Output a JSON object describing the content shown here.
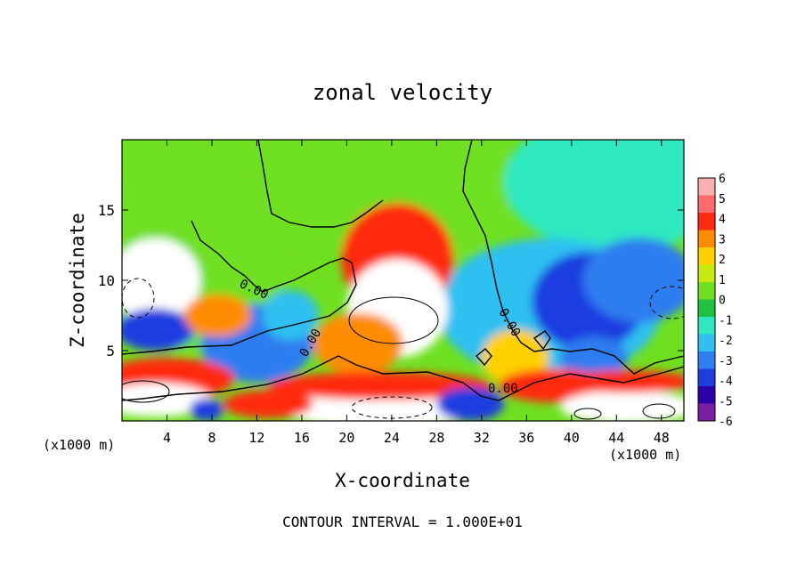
{
  "chart_data": {
    "type": "heatmap",
    "title": "zonal velocity",
    "xlabel": "X-coordinate",
    "ylabel": "Z-coordinate",
    "x_unit_label": "(x1000 m)",
    "x_ticks": [
      4,
      8,
      12,
      16,
      20,
      24,
      28,
      32,
      36,
      40,
      44,
      48
    ],
    "y_ticks": [
      5,
      10,
      15
    ],
    "xlim": [
      0,
      50
    ],
    "ylim": [
      0,
      20
    ],
    "colorbar": {
      "levels": [
        -6,
        -5,
        -4,
        -3,
        -2,
        -1,
        0,
        1,
        2,
        3,
        4,
        5,
        6
      ],
      "colors": [
        "#7b1fa2",
        "#2a00a8",
        "#1f3ee0",
        "#2f7df0",
        "#2fc0f0",
        "#2ee8c0",
        "#20c040",
        "#6fe020",
        "#c8ea10",
        "#ffd000",
        "#ff8c00",
        "#ff2a10",
        "#ff6a6a",
        "#f7b0b0"
      ]
    },
    "contour_labels": [
      "0.00",
      "0.00",
      "0.00",
      "0.00"
    ],
    "footer": "CONTOUR INTERVAL = 1.000E+01",
    "field_blobs": [
      {
        "x": 25,
        "y": 17,
        "rx": 10,
        "ry": 6,
        "level": 0.8
      },
      {
        "x": 6,
        "y": 12,
        "rx": 9,
        "ry": 7,
        "level": 0.7
      },
      {
        "x": 44,
        "y": 17,
        "rx": 10,
        "ry": 5,
        "level": -1.7
      },
      {
        "x": 38,
        "y": 8,
        "rx": 10,
        "ry": 5,
        "level": -2.3
      },
      {
        "x": 41.5,
        "y": 8.5,
        "rx": 5,
        "ry": 3.5,
        "level": -4.4
      },
      {
        "x": 42,
        "y": 4.5,
        "rx": 3,
        "ry": 1.5,
        "level": -3.6
      },
      {
        "x": 46,
        "y": 10,
        "rx": 5,
        "ry": 3,
        "level": -3.2
      },
      {
        "x": 24.5,
        "y": 11.5,
        "rx": 5,
        "ry": 4,
        "level": 4.2
      },
      {
        "x": 24.5,
        "y": 8,
        "rx": 4.5,
        "ry": 3.5,
        "level": 7.5
      },
      {
        "x": 21,
        "y": 5.5,
        "rx": 4,
        "ry": 2.2,
        "level": 3.2
      },
      {
        "x": 12,
        "y": 5.5,
        "rx": 5,
        "ry": 2.8,
        "level": -3.5
      },
      {
        "x": 15,
        "y": 7.5,
        "rx": 2.5,
        "ry": 1.8,
        "level": -2.4
      },
      {
        "x": 3,
        "y": 10,
        "rx": 4,
        "ry": 3,
        "level": 7.5
      },
      {
        "x": 3,
        "y": 6.5,
        "rx": 3.5,
        "ry": 1.5,
        "level": -4.8
      },
      {
        "x": 4,
        "y": 3,
        "rx": 6,
        "ry": 1.5,
        "level": 4.6
      },
      {
        "x": 3,
        "y": 1.5,
        "rx": 5,
        "ry": 1.2,
        "level": 7
      },
      {
        "x": 8.5,
        "y": 7.5,
        "rx": 3,
        "ry": 1.5,
        "level": 3.6
      },
      {
        "x": 23,
        "y": 1,
        "rx": 9,
        "ry": 1.5,
        "level": 7
      },
      {
        "x": 23,
        "y": 2.5,
        "rx": 10,
        "ry": 1,
        "level": 4.2
      },
      {
        "x": 31,
        "y": 1.2,
        "rx": 3,
        "ry": 1.2,
        "level": -4.5
      },
      {
        "x": 35,
        "y": 4.5,
        "rx": 3,
        "ry": 2,
        "level": 2.5
      },
      {
        "x": 38.5,
        "y": 2.5,
        "rx": 5,
        "ry": 1.2,
        "level": 4.5
      },
      {
        "x": 45,
        "y": 1,
        "rx": 6,
        "ry": 1.2,
        "level": 7
      },
      {
        "x": 45,
        "y": 2.8,
        "rx": 6,
        "ry": 0.8,
        "level": 4.8
      },
      {
        "x": 13,
        "y": 1.2,
        "rx": 4,
        "ry": 1,
        "level": 4.5
      },
      {
        "x": 7.5,
        "y": 0.8,
        "rx": 1.5,
        "ry": 0.8,
        "level": -4.5
      }
    ]
  }
}
